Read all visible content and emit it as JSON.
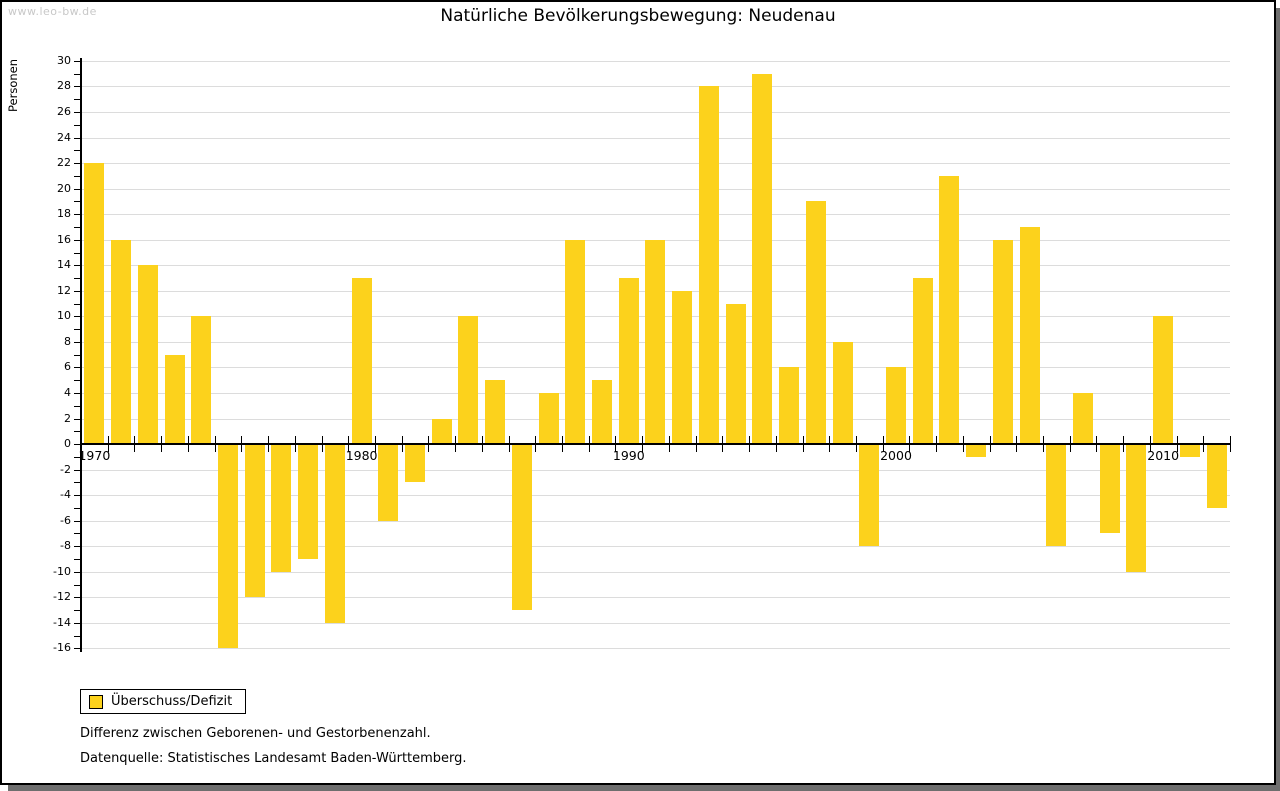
{
  "watermark": "www.leo-bw.de",
  "title": "Natürliche Bevölkerungsbewegung: Neudenau",
  "legend": {
    "label": "Überschuss/Defizit"
  },
  "footnotes": [
    "Differenz zwischen Geborenen- und Gestorbenenzahl.",
    "Datenquelle: Statistisches Landesamt Baden-Württemberg."
  ],
  "colors": {
    "bar": "#fcd21c",
    "grid": "#dcdcdc",
    "axis": "#000000",
    "watermark": "#c8c8c8",
    "frame_shadow": "#6e6e6e"
  },
  "chart_data": {
    "type": "bar",
    "title": "Natürliche Bevölkerungsbewegung: Neudenau",
    "xlabel": "",
    "ylabel": "Personen",
    "ylim": [
      -16,
      30
    ],
    "y_gridline_step": 2,
    "y_label_step": 2,
    "y_minor_tick_step": 1,
    "grid": true,
    "legend_entries": [
      "Überschuss/Defizit"
    ],
    "legend_position": "bottom-left",
    "xtick_labels": [
      1970,
      1980,
      1990,
      2000,
      2010
    ],
    "categories": [
      1970,
      1971,
      1972,
      1973,
      1974,
      1975,
      1976,
      1977,
      1978,
      1979,
      1980,
      1981,
      1982,
      1983,
      1984,
      1985,
      1986,
      1987,
      1988,
      1989,
      1990,
      1991,
      1992,
      1993,
      1994,
      1995,
      1996,
      1997,
      1998,
      1999,
      2000,
      2001,
      2002,
      2003,
      2004,
      2005,
      2006,
      2007,
      2008,
      2009,
      2010,
      2011,
      2012
    ],
    "values": [
      22,
      16,
      14,
      7,
      10,
      -16,
      -12,
      -10,
      -9,
      -14,
      13,
      -6,
      -3,
      2,
      10,
      5,
      -13,
      4,
      16,
      5,
      13,
      16,
      12,
      28,
      11,
      29,
      6,
      19,
      8,
      -8,
      6,
      13,
      21,
      -1,
      16,
      17,
      -8,
      4,
      -7,
      -10,
      10,
      -1,
      -5
    ]
  }
}
